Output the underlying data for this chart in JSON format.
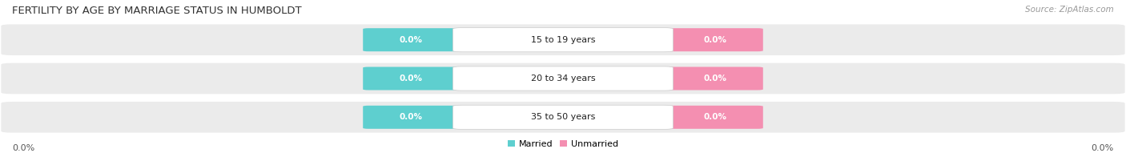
{
  "title": "FERTILITY BY AGE BY MARRIAGE STATUS IN HUMBOLDT",
  "source": "Source: ZipAtlas.com",
  "age_groups": [
    "15 to 19 years",
    "20 to 34 years",
    "35 to 50 years"
  ],
  "married_values": [
    0.0,
    0.0,
    0.0
  ],
  "unmarried_values": [
    0.0,
    0.0,
    0.0
  ],
  "married_color": "#5ecfcf",
  "unmarried_color": "#f48fb1",
  "row_bg_color": "#ebebeb",
  "center_label_bg": "#ffffff",
  "background_color": "#ffffff",
  "x_left_label": "0.0%",
  "x_right_label": "0.0%",
  "legend_married": "Married",
  "legend_unmarried": "Unmarried",
  "title_fontsize": 9.5,
  "source_fontsize": 7.5,
  "label_fontsize": 8,
  "value_fontsize": 7.5
}
